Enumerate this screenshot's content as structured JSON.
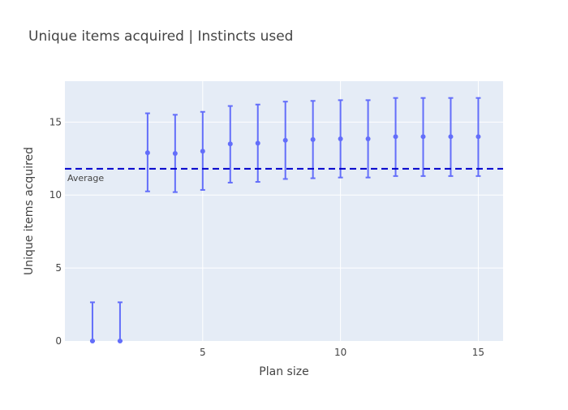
{
  "chart_data": {
    "type": "scatter",
    "title": "Unique items acquired | Instincts used",
    "xlabel": "Plan size",
    "ylabel": "Unique items acquired",
    "xlim": [
      0,
      15.9
    ],
    "ylim": [
      0,
      17.8
    ],
    "xticks": [
      5,
      10,
      15
    ],
    "yticks": [
      0,
      5,
      10,
      15
    ],
    "grid": true,
    "legend": "none",
    "series": [
      {
        "x": [
          1,
          2,
          3,
          4,
          5,
          6,
          7,
          8,
          9,
          10,
          11,
          12,
          13,
          14,
          15
        ],
        "y": [
          0,
          0,
          12.9,
          12.85,
          13.0,
          13.5,
          13.55,
          13.75,
          13.8,
          13.85,
          13.85,
          14.0,
          14.0,
          14.0,
          14.0
        ],
        "error_upper": [
          2.65,
          2.65,
          15.6,
          15.5,
          15.7,
          16.1,
          16.2,
          16.4,
          16.45,
          16.5,
          16.5,
          16.65,
          16.65,
          16.65,
          16.65
        ],
        "error_lower": [
          0,
          0,
          10.25,
          10.2,
          10.35,
          10.85,
          10.9,
          11.1,
          11.15,
          11.2,
          11.2,
          11.3,
          11.3,
          11.3,
          11.3
        ]
      }
    ],
    "reference_line": {
      "y": 11.8,
      "label": "Average",
      "style": "dashed"
    },
    "colors": {
      "marker": "#636efa",
      "reference": "#0000cc",
      "plot_bg": "#e5ecf6",
      "grid": "#ffffff"
    }
  }
}
